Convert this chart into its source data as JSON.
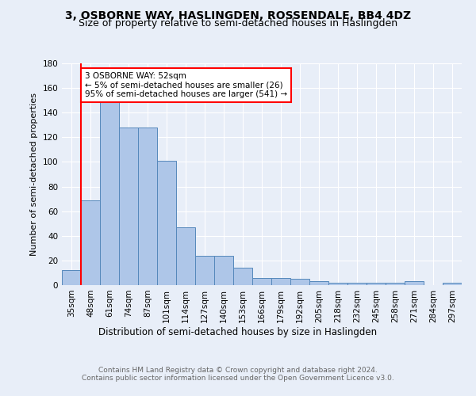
{
  "title": "3, OSBORNE WAY, HASLINGDEN, ROSSENDALE, BB4 4DZ",
  "subtitle": "Size of property relative to semi-detached houses in Haslingden",
  "xlabel": "Distribution of semi-detached houses by size in Haslingden",
  "ylabel": "Number of semi-detached properties",
  "categories": [
    "35sqm",
    "48sqm",
    "61sqm",
    "74sqm",
    "87sqm",
    "101sqm",
    "114sqm",
    "127sqm",
    "140sqm",
    "153sqm",
    "166sqm",
    "179sqm",
    "192sqm",
    "205sqm",
    "218sqm",
    "232sqm",
    "245sqm",
    "258sqm",
    "271sqm",
    "284sqm",
    "297sqm"
  ],
  "values": [
    12,
    69,
    150,
    128,
    128,
    101,
    47,
    24,
    24,
    14,
    6,
    6,
    5,
    3,
    2,
    2,
    2,
    2,
    3,
    0,
    2
  ],
  "bar_color": "#aec6e8",
  "bar_edge_color": "#5588bb",
  "vline_x_idx": 1,
  "vline_color": "red",
  "annotation_text": "3 OSBORNE WAY: 52sqm\n← 5% of semi-detached houses are smaller (26)\n95% of semi-detached houses are larger (541) →",
  "annotation_box_color": "white",
  "annotation_box_edge": "red",
  "ylim": [
    0,
    180
  ],
  "yticks": [
    0,
    20,
    40,
    60,
    80,
    100,
    120,
    140,
    160,
    180
  ],
  "footer": "Contains HM Land Registry data © Crown copyright and database right 2024.\nContains public sector information licensed under the Open Government Licence v3.0.",
  "bg_color": "#e8eef8",
  "plot_bg_color": "#e8eef8",
  "grid_color": "white",
  "title_fontsize": 10,
  "subtitle_fontsize": 9,
  "axis_label_fontsize": 8.5,
  "tick_fontsize": 7.5,
  "annotation_fontsize": 7.5,
  "footer_fontsize": 6.5,
  "ylabel_fontsize": 8
}
